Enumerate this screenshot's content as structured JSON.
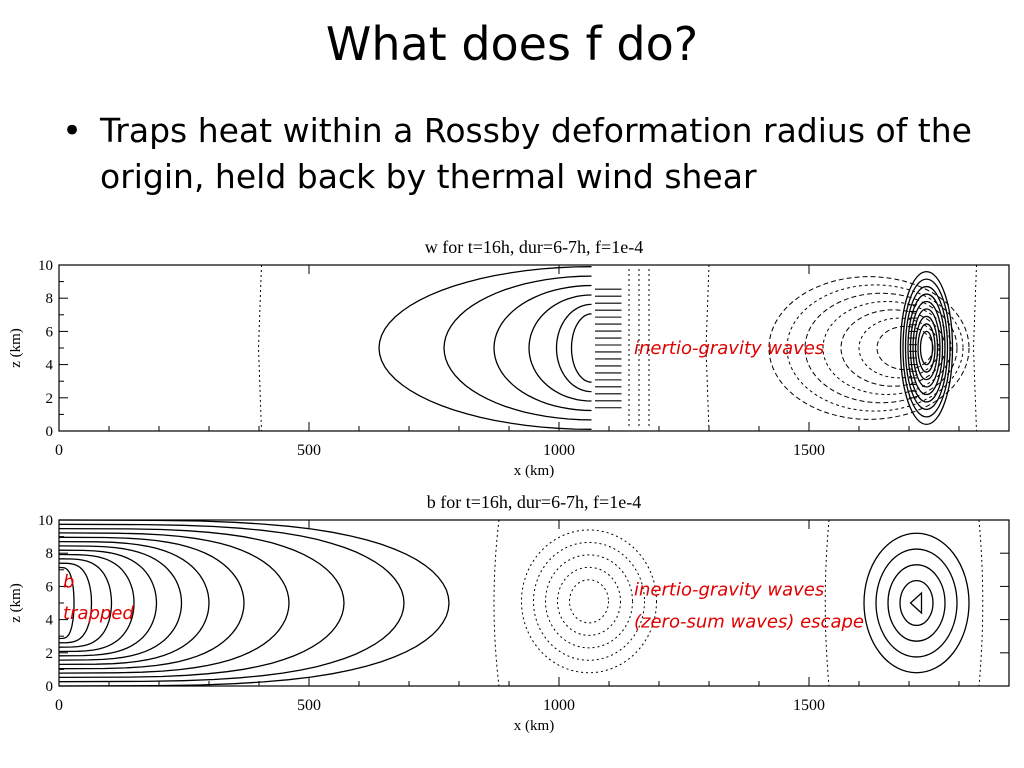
{
  "slide": {
    "title": "What does f do?",
    "bullet": "Traps heat within a Rossby deformation radius of the origin, held back by thermal wind shear"
  },
  "annotation_color": "#e00000",
  "chart_data": [
    {
      "type": "contour",
      "title": "w for t=16h, dur=6-7h, f=1e-4",
      "xlabel": "x (km)",
      "ylabel": "z (km)",
      "xlim": [
        0,
        1900
      ],
      "ylim": [
        0,
        10
      ],
      "xticks": [
        0,
        500,
        1000,
        1500
      ],
      "yticks": [
        0,
        2,
        4,
        6,
        8,
        10
      ],
      "annotations": [
        {
          "text": "inertio-gravity waves",
          "x": 1150,
          "y": 5
        }
      ]
    },
    {
      "type": "contour",
      "title": "b for t=16h, dur=6-7h, f=1e-4",
      "xlabel": "x (km)",
      "ylabel": "z (km)",
      "xlim": [
        0,
        1900
      ],
      "ylim": [
        0,
        10
      ],
      "xticks": [
        0,
        500,
        1000,
        1500
      ],
      "yticks": [
        0,
        2,
        4,
        6,
        8,
        10
      ],
      "annotations": [
        {
          "text": "b",
          "x": 0,
          "y": 6.3
        },
        {
          "text": "trapped",
          "x": 0,
          "y": 4.4
        },
        {
          "text": "inertio-gravity waves",
          "x": 1150,
          "y": 5.8
        },
        {
          "text": "(zero-sum waves) escape",
          "x": 1150,
          "y": 3.9
        }
      ]
    }
  ]
}
